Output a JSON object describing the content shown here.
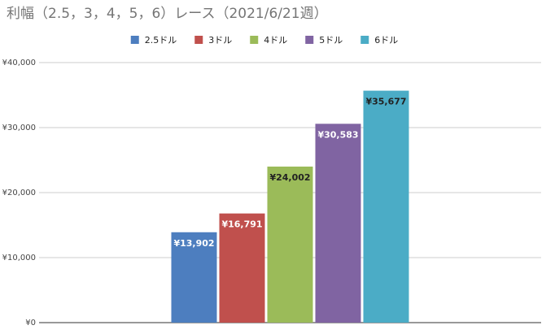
{
  "chart_data": {
    "type": "bar",
    "title": "利幅（2.5，3，4，5，6）レース（2021/6/21週）",
    "categories": [
      null
    ],
    "series": [
      {
        "name": "2.5ドル",
        "color": "#4d7ebf",
        "values": [
          13902
        ],
        "value_labels": [
          "¥13,902"
        ]
      },
      {
        "name": "3ドル",
        "color": "#c0504d",
        "values": [
          16791
        ],
        "value_labels": [
          "¥16,791"
        ]
      },
      {
        "name": "4ドル",
        "color": "#9bbb59",
        "values": [
          24002
        ],
        "value_labels": [
          "¥24,002"
        ]
      },
      {
        "name": "5ドル",
        "color": "#8064a2",
        "values": [
          30583
        ],
        "value_labels": [
          "¥30,583"
        ]
      },
      {
        "name": "6ドル",
        "color": "#4bacc6",
        "values": [
          35677
        ],
        "value_labels": [
          "¥35,677"
        ]
      }
    ],
    "ylim": [
      0,
      40000
    ],
    "yticks": [
      {
        "value": 0,
        "label": "¥0"
      },
      {
        "value": 10000,
        "label": "¥10,000"
      },
      {
        "value": 20000,
        "label": "¥20,000"
      },
      {
        "value": 30000,
        "label": "¥30,000"
      },
      {
        "value": 40000,
        "label": "¥40,000"
      }
    ],
    "grid": true,
    "legend": "top"
  }
}
